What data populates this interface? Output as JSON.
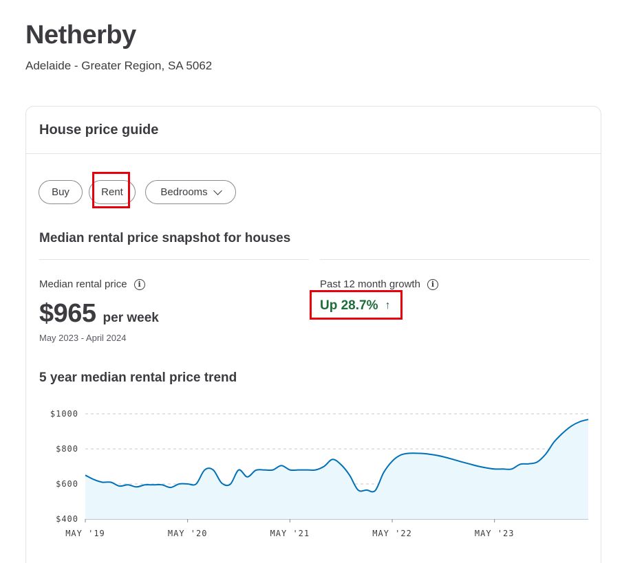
{
  "header": {
    "suburb": "Netherby",
    "region": "Adelaide - Greater Region, SA 5062"
  },
  "card": {
    "title": "House price guide",
    "filters": {
      "buy_label": "Buy",
      "rent_label": "Rent",
      "bedrooms_label": "Bedrooms",
      "selected": "Rent"
    },
    "snapshot": {
      "title": "Median rental price snapshot for houses",
      "median_label": "Median rental price",
      "median_value": "$965",
      "median_unit": "per week",
      "period": "May 2023 - April 2024",
      "growth_label": "Past 12 month growth",
      "growth_value": "Up 28.7%",
      "growth_arrow": "↑"
    },
    "trend_title": "5 year median rental price trend"
  },
  "colors": {
    "text": "#3d3b40",
    "growth_green": "#1e6b3c",
    "line_blue": "#0070b8",
    "area_fill": "#eaf7fd",
    "highlight_red": "#e8000b"
  },
  "chart_data": {
    "type": "area",
    "title": "5 year median rental price trend",
    "xlabel": "",
    "ylabel": "",
    "ylim": [
      400,
      1000
    ],
    "y_ticks": [
      1000,
      800,
      600,
      400
    ],
    "y_tick_labels": [
      "$1000",
      "$800",
      "$600",
      "$400"
    ],
    "x_ticks": [
      "2019-05",
      "2020-05",
      "2021-05",
      "2022-05",
      "2023-05"
    ],
    "x_tick_labels": [
      "MAY '19",
      "MAY '20",
      "MAY '21",
      "MAY '22",
      "MAY '23"
    ],
    "grid": true,
    "series": [
      {
        "x": [
          "2019-05",
          "2019-06",
          "2019-07",
          "2019-08",
          "2019-09",
          "2019-10",
          "2019-11",
          "2019-12",
          "2020-01",
          "2020-02",
          "2020-03",
          "2020-04",
          "2020-05",
          "2020-06",
          "2020-07",
          "2020-08",
          "2020-09",
          "2020-10",
          "2020-11",
          "2020-12",
          "2021-01",
          "2021-02",
          "2021-03",
          "2021-04",
          "2021-05",
          "2021-06",
          "2021-07",
          "2021-08",
          "2021-09",
          "2021-10",
          "2021-11",
          "2021-12",
          "2022-01",
          "2022-02",
          "2022-03",
          "2022-04",
          "2022-05",
          "2022-06",
          "2022-07",
          "2022-08",
          "2022-09",
          "2022-10",
          "2022-11",
          "2022-12",
          "2023-01",
          "2023-02",
          "2023-03",
          "2023-04",
          "2023-05",
          "2023-06",
          "2023-07",
          "2023-08",
          "2023-09",
          "2023-10",
          "2023-11",
          "2023-12",
          "2024-01",
          "2024-02",
          "2024-03",
          "2024-04"
        ],
        "y": [
          650,
          625,
          610,
          610,
          588,
          595,
          583,
          595,
          595,
          595,
          580,
          600,
          600,
          600,
          680,
          680,
          605,
          598,
          680,
          640,
          678,
          680,
          680,
          705,
          680,
          680,
          680,
          680,
          700,
          740,
          710,
          650,
          565,
          565,
          562,
          665,
          730,
          765,
          775,
          775,
          772,
          765,
          755,
          742,
          728,
          715,
          702,
          692,
          685,
          685,
          685,
          712,
          715,
          725,
          770,
          840,
          890,
          930,
          955,
          968
        ]
      }
    ]
  }
}
